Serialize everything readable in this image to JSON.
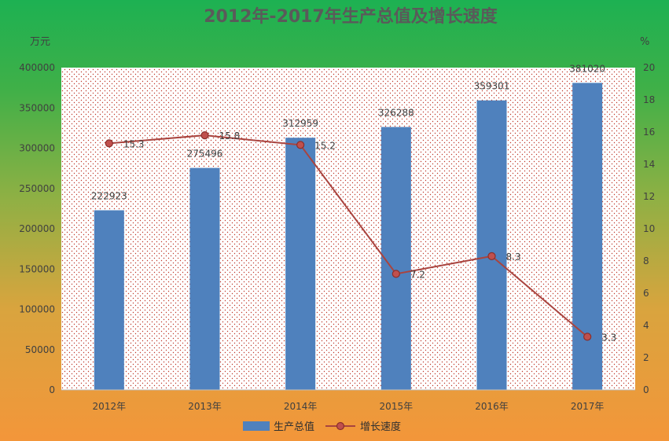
{
  "chart_data": {
    "type": "bar",
    "title": "2012年-2017年生产总值及增长速度",
    "y_left_unit": "万元",
    "y_right_unit": "%",
    "categories": [
      "2012年",
      "2013年",
      "2014年",
      "2015年",
      "2016年",
      "2017年"
    ],
    "ylim_left": [
      0,
      400000
    ],
    "ylim_right": [
      0,
      20
    ],
    "y_left_ticks": [
      0,
      50000,
      100000,
      150000,
      200000,
      250000,
      300000,
      350000,
      400000
    ],
    "y_right_ticks": [
      0,
      2,
      4,
      6,
      8,
      10,
      12,
      14,
      16,
      18,
      20
    ],
    "series": [
      {
        "name": "生产总值",
        "type": "bar",
        "axis": "left",
        "values": [
          222923,
          275496,
          312959,
          326288,
          359301,
          381020
        ],
        "labels": [
          "222923",
          "275496",
          "312959",
          "326288",
          "359301",
          "381020"
        ],
        "color": "#4f81bd"
      },
      {
        "name": "增长速度",
        "type": "line",
        "axis": "right",
        "values": [
          15.3,
          15.8,
          15.2,
          7.2,
          8.3,
          3.3
        ],
        "labels": [
          "15.3",
          "15.8",
          "15.2",
          "7.2",
          "8.3",
          "3.3"
        ],
        "color": "#a9443f"
      }
    ],
    "plot_background": "dotted",
    "legend_position": "bottom"
  }
}
